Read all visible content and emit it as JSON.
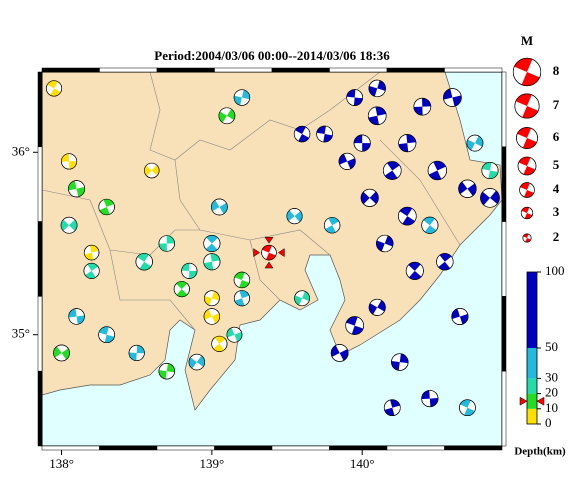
{
  "chart_data": {
    "type": "focal-map",
    "title": "Period:2004/03/06 00:00--2014/03/06 18:36",
    "xlim": [
      137.87,
      140.93
    ],
    "ylim": [
      34.39,
      36.44
    ],
    "xticks": [
      {
        "value": 138,
        "label": "138°"
      },
      {
        "value": 139,
        "label": "139°"
      },
      {
        "value": 140,
        "label": "140°"
      }
    ],
    "yticks": [
      {
        "value": 35,
        "label": "35°"
      },
      {
        "value": 36,
        "label": "36°"
      }
    ],
    "magnitude_title": "M",
    "magnitudes": [
      8,
      7,
      6,
      5,
      4,
      3,
      2
    ],
    "depth_label": "Depth(km)",
    "depth_lim": [
      0,
      100
    ],
    "depth_ticks": [
      0,
      10,
      20,
      30,
      50,
      100
    ],
    "depth_colors": [
      "#ffe000",
      "#22dd22",
      "#22ddaa",
      "#22bbdd",
      "#0000c0"
    ],
    "highlight": {
      "lon": 139.38,
      "lat": 35.45,
      "depth": 15,
      "mag": 4,
      "color": "#ff0000"
    },
    "events": [
      [
        140.0,
        36.05,
        65,
        4.5
      ],
      [
        140.1,
        36.2,
        70,
        5
      ],
      [
        139.9,
        35.95,
        60,
        4.5
      ],
      [
        140.2,
        35.9,
        75,
        5
      ],
      [
        140.05,
        35.75,
        65,
        4.8
      ],
      [
        140.3,
        35.65,
        70,
        5
      ],
      [
        140.15,
        35.5,
        60,
        4.6
      ],
      [
        139.75,
        36.1,
        55,
        4.4
      ],
      [
        140.4,
        36.25,
        68,
        4.7
      ],
      [
        140.6,
        36.3,
        60,
        5
      ],
      [
        140.5,
        35.9,
        72,
        5.2
      ],
      [
        140.7,
        35.8,
        66,
        4.9
      ],
      [
        140.35,
        35.35,
        70,
        4.8
      ],
      [
        140.1,
        35.15,
        62,
        4.5
      ],
      [
        139.95,
        35.05,
        75,
        5
      ],
      [
        140.25,
        34.85,
        65,
        4.6
      ],
      [
        140.45,
        34.65,
        70,
        4.5
      ],
      [
        140.2,
        34.6,
        58,
        4.4
      ],
      [
        139.85,
        34.9,
        60,
        4.7
      ],
      [
        140.55,
        35.4,
        55,
        4.6
      ],
      [
        140.85,
        35.75,
        60,
        5.3
      ],
      [
        139.6,
        36.1,
        52,
        4.3
      ],
      [
        140.1,
        36.35,
        70,
        4.6
      ],
      [
        139.95,
        36.3,
        62,
        4.4
      ],
      [
        140.3,
        36.05,
        80,
        4.8
      ],
      [
        140.65,
        35.1,
        60,
        4.5
      ],
      [
        139.8,
        35.6,
        40,
        4.3
      ],
      [
        139.55,
        35.65,
        35,
        4.2
      ],
      [
        140.45,
        35.6,
        40,
        4.5
      ],
      [
        140.75,
        36.05,
        45,
        4.4
      ],
      [
        138.3,
        35.0,
        35,
        4.4
      ],
      [
        138.5,
        34.9,
        40,
        4.2
      ],
      [
        138.1,
        35.1,
        38,
        4.3
      ],
      [
        139.2,
        35.2,
        36,
        4.2
      ],
      [
        139.05,
        35.7,
        42,
        4.4
      ],
      [
        139.0,
        35.5,
        35,
        4.5
      ],
      [
        138.9,
        34.85,
        38,
        4.3
      ],
      [
        140.7,
        34.6,
        40,
        4.4
      ],
      [
        139.2,
        36.3,
        45,
        4.3
      ],
      [
        138.85,
        35.35,
        25,
        4.2
      ],
      [
        139.0,
        35.4,
        22,
        4.5
      ],
      [
        139.15,
        35.0,
        28,
        4.1
      ],
      [
        138.2,
        35.35,
        25,
        4.2
      ],
      [
        138.05,
        35.6,
        22,
        4.4
      ],
      [
        138.55,
        35.4,
        25,
        4.6
      ],
      [
        139.6,
        35.2,
        25,
        4.1
      ],
      [
        140.85,
        35.9,
        25,
        4.5
      ],
      [
        138.7,
        35.5,
        22,
        4.3
      ],
      [
        138.1,
        35.8,
        15,
        4.5
      ],
      [
        138.3,
        35.7,
        12,
        4.3
      ],
      [
        138.0,
        34.9,
        15,
        4.4
      ],
      [
        138.8,
        35.25,
        14,
        4.2
      ],
      [
        139.1,
        36.2,
        15,
        4.4
      ],
      [
        139.2,
        35.3,
        15,
        4.3
      ],
      [
        138.7,
        34.8,
        12,
        4.3
      ],
      [
        138.05,
        35.95,
        5,
        4.2
      ],
      [
        138.2,
        35.45,
        6,
        4.0
      ],
      [
        139.0,
        35.1,
        5,
        4.3
      ],
      [
        139.05,
        34.95,
        6,
        4.2
      ],
      [
        138.6,
        35.9,
        8,
        4.0
      ],
      [
        137.95,
        36.35,
        5,
        4.2
      ],
      [
        139.0,
        35.2,
        6,
        4.1
      ]
    ]
  }
}
